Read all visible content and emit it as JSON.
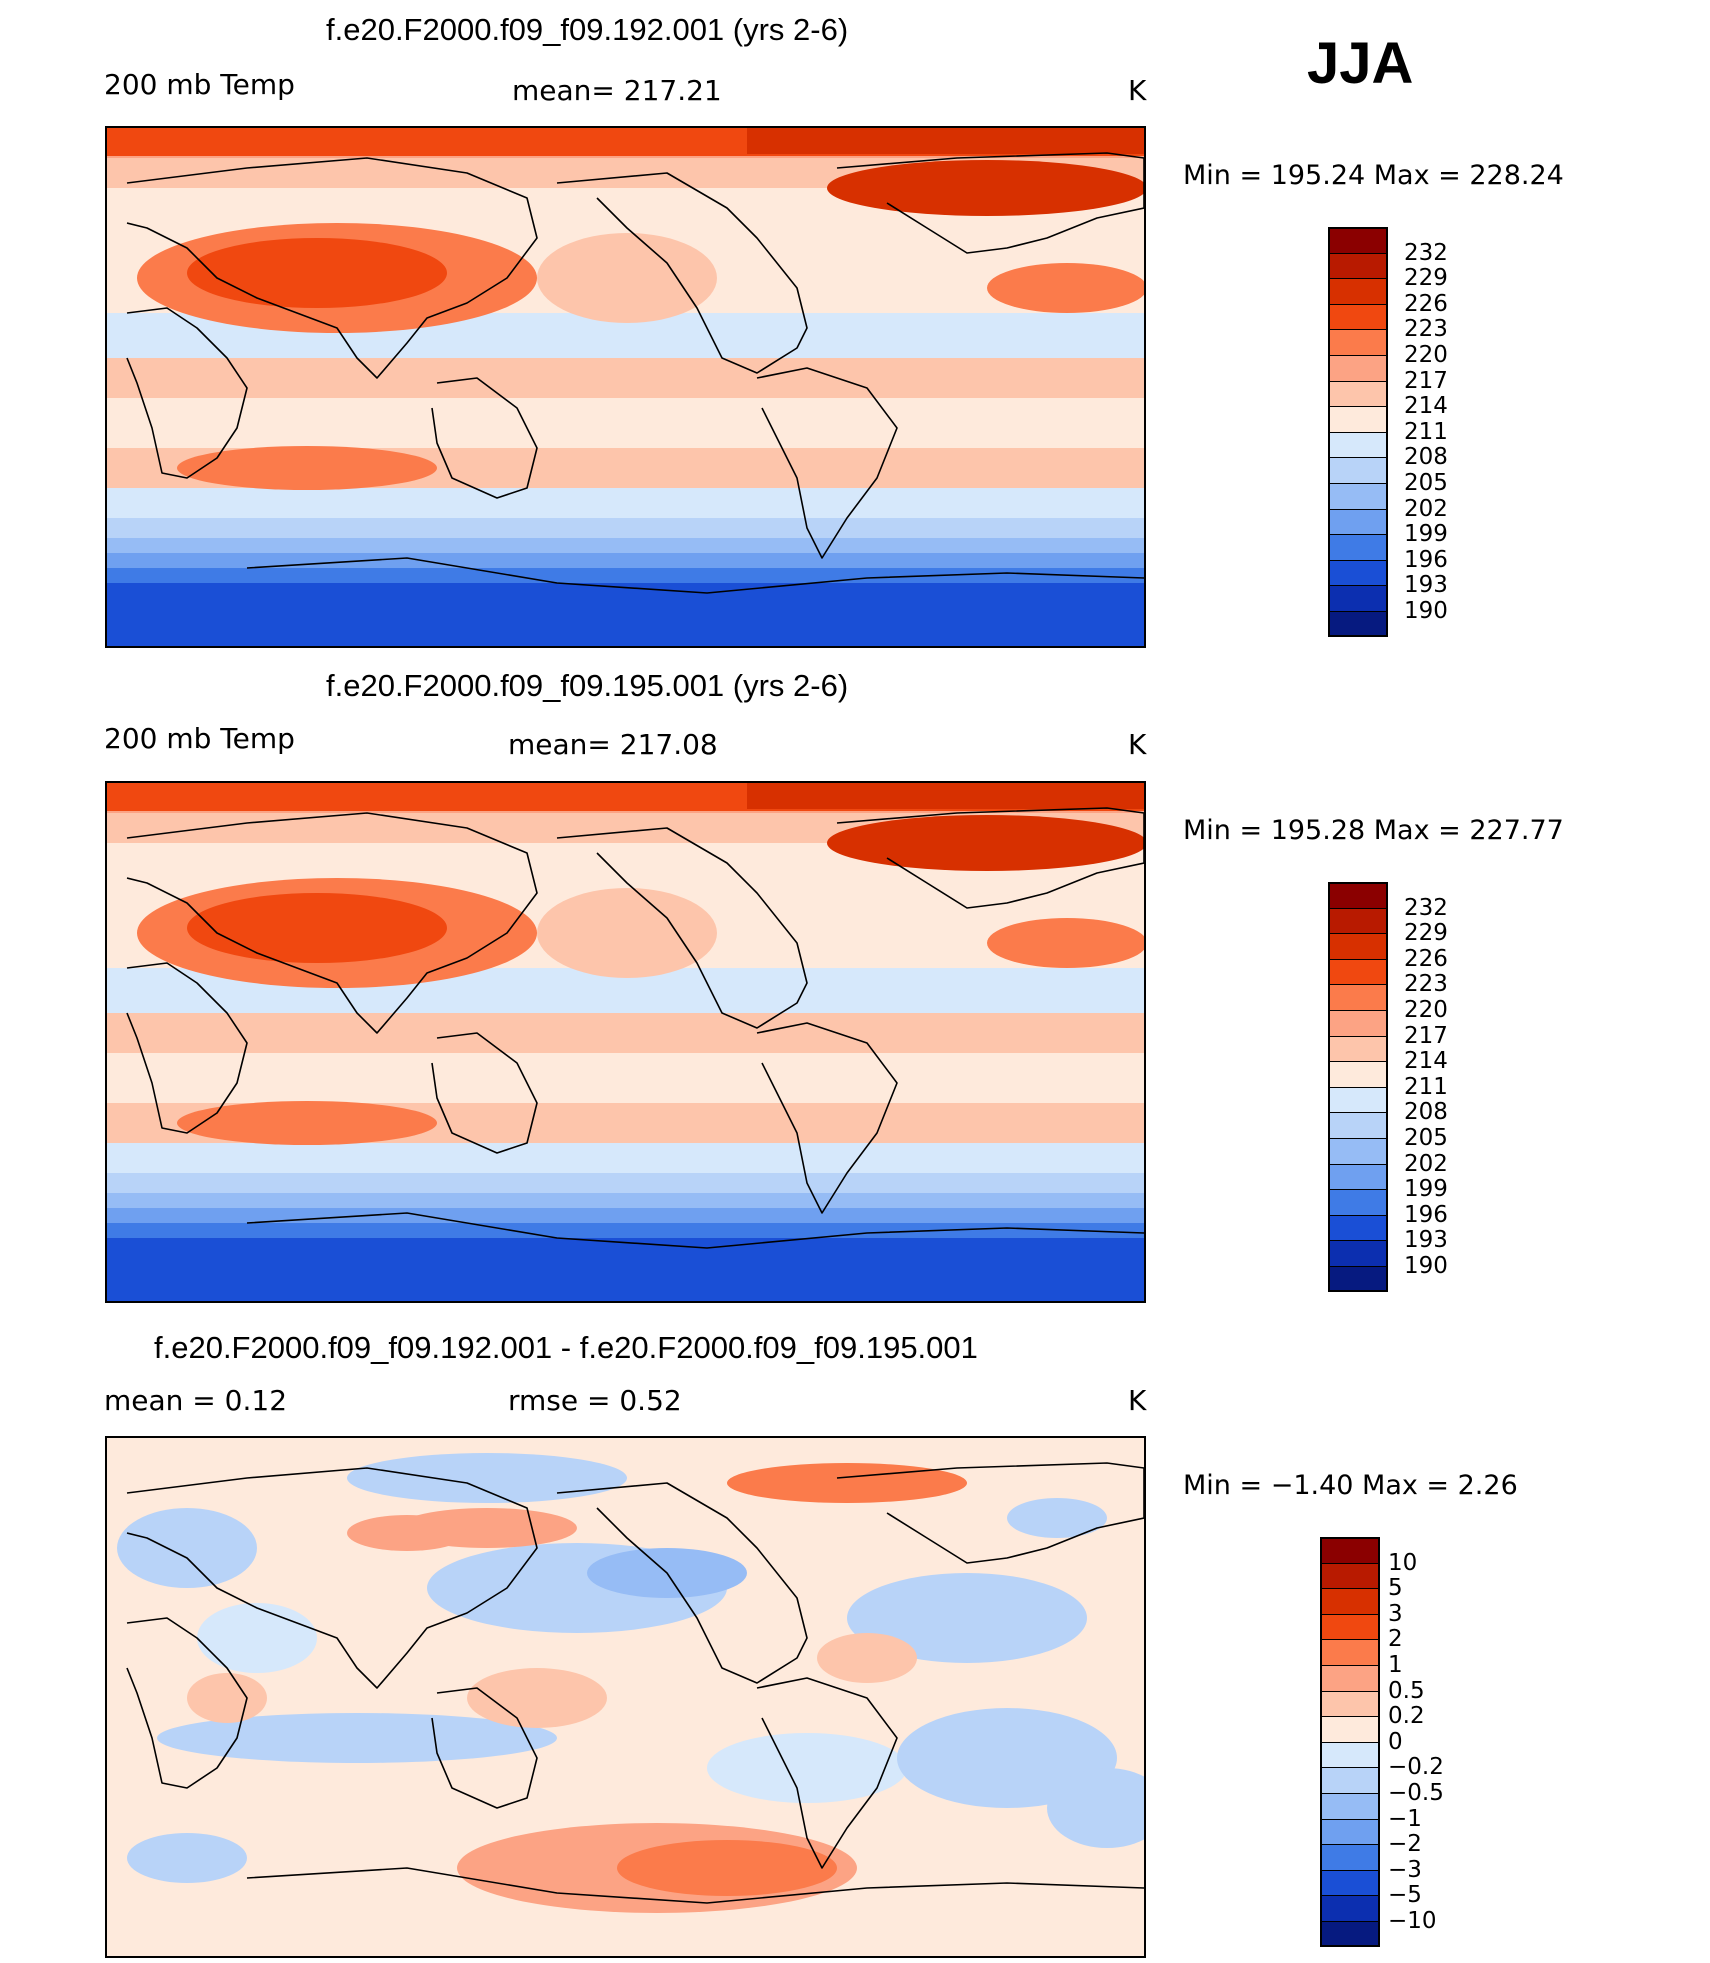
{
  "season": "JJA",
  "panels": [
    {
      "title": "f.e20.F2000.f09_f09.192.001 (yrs 2-6)",
      "left_label": "200 mb Temp",
      "center_label": "mean= 217.21",
      "units": "K",
      "minmax": "Min = 195.24 Max = 228.24",
      "colorbar": {
        "labels": [
          "232",
          "229",
          "226",
          "223",
          "220",
          "217",
          "214",
          "211",
          "208",
          "205",
          "202",
          "199",
          "196",
          "193",
          "190"
        ],
        "colors": [
          "#8b0000",
          "#b81a00",
          "#d73000",
          "#f04810",
          "#fb7b4b",
          "#fca384",
          "#fdc5ab",
          "#feeadc",
          "#d6e8fb",
          "#b8d3f8",
          "#96bcf5",
          "#6fa0f0",
          "#3f7be6",
          "#1a4fd6",
          "#0c2fb0",
          "#061a80"
        ]
      },
      "map": {
        "kind": "abs",
        "mean": 217.21
      }
    },
    {
      "title": "f.e20.F2000.f09_f09.195.001 (yrs 2-6)",
      "left_label": "200 mb Temp",
      "center_label": "mean= 217.08",
      "units": "K",
      "minmax": "Min = 195.28 Max = 227.77",
      "colorbar": {
        "labels": [
          "232",
          "229",
          "226",
          "223",
          "220",
          "217",
          "214",
          "211",
          "208",
          "205",
          "202",
          "199",
          "196",
          "193",
          "190"
        ],
        "colors": [
          "#8b0000",
          "#b81a00",
          "#d73000",
          "#f04810",
          "#fb7b4b",
          "#fca384",
          "#fdc5ab",
          "#feeadc",
          "#d6e8fb",
          "#b8d3f8",
          "#96bcf5",
          "#6fa0f0",
          "#3f7be6",
          "#1a4fd6",
          "#0c2fb0",
          "#061a80"
        ]
      },
      "map": {
        "kind": "abs",
        "mean": 217.08
      }
    },
    {
      "title": "f.e20.F2000.f09_f09.192.001 - f.e20.F2000.f09_f09.195.001",
      "left_label": "mean =    0.12",
      "center_label": "rmse =    0.52",
      "units": "K",
      "minmax": "Min =   −1.40 Max =    2.26",
      "colorbar": {
        "labels": [
          "10",
          "5",
          "3",
          "2",
          "1",
          "0.5",
          "0.2",
          "0",
          "−0.2",
          "−0.5",
          "−1",
          "−2",
          "−3",
          "−5",
          "−10"
        ],
        "colors": [
          "#8b0000",
          "#b81a00",
          "#d73000",
          "#f04810",
          "#fb7b4b",
          "#fca384",
          "#fdc5ab",
          "#feeadc",
          "#d6e8fb",
          "#b8d3f8",
          "#96bcf5",
          "#6fa0f0",
          "#3f7be6",
          "#1a4fd6",
          "#0c2fb0",
          "#061a80"
        ]
      },
      "map": {
        "kind": "diff",
        "mean": 0.12,
        "rmse": 0.52
      }
    }
  ]
}
